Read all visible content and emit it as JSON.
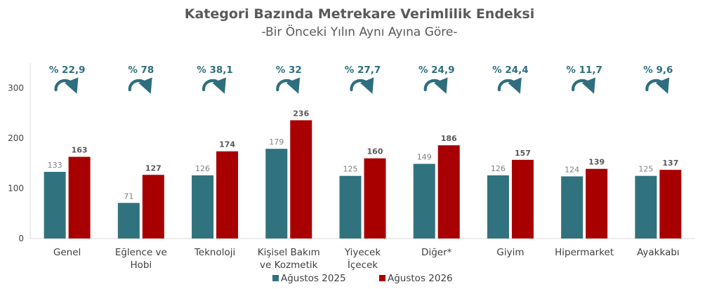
{
  "colors": {
    "series1": "#31727f",
    "series2": "#a80000",
    "change": "#2e6e7e"
  },
  "chart_data": {
    "type": "bar",
    "title": "Kategori Bazında Metrekare Verimlilik Endeksi",
    "subtitle": "-Bir Önceki Yılın Aynı Ayına Göre-",
    "categories": [
      [
        "Genel"
      ],
      [
        "Eğlence ve",
        "Hobi"
      ],
      [
        "Teknoloji"
      ],
      [
        "Kişisel Bakım",
        "ve Kozmetik"
      ],
      [
        "Yiyecek",
        "İçecek"
      ],
      [
        "Diğer*"
      ],
      [
        "Giyim"
      ],
      [
        "Hipermarket"
      ],
      [
        "Ayakkabı"
      ]
    ],
    "series": [
      {
        "name": "Ağustos 2025",
        "values": [
          133,
          71,
          126,
          179,
          125,
          149,
          126,
          124,
          125
        ]
      },
      {
        "name": "Ağustos 2026",
        "values": [
          163,
          127,
          174,
          236,
          160,
          186,
          157,
          139,
          137
        ]
      }
    ],
    "changes": [
      "% 22,9",
      "% 78",
      "% 38,1",
      "% 32",
      "% 27,7",
      "% 24,9",
      "% 24,4",
      "% 11,7",
      "% 9,6"
    ],
    "yticks": [
      0,
      100,
      200,
      300
    ],
    "ylim": [
      0,
      350
    ],
    "grid": false,
    "legend_position": "bottom"
  }
}
